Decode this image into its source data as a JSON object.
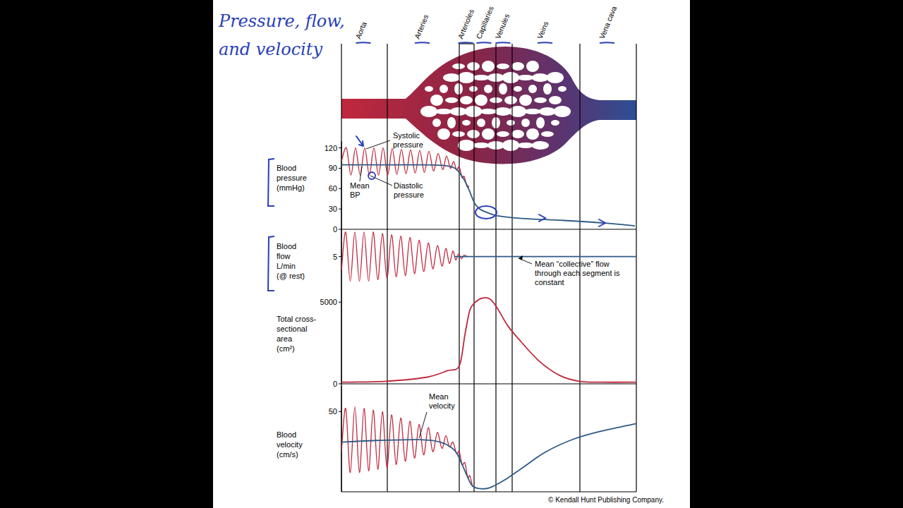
{
  "title": [
    "Pressure, flow,",
    "and velocity"
  ],
  "vessel_segments": {
    "labels": [
      "Aorta",
      "Arteries",
      "Arterioles",
      "Capillaries",
      "Venules",
      "Veins",
      "Vena cava"
    ],
    "bounds": [
      0,
      65,
      167,
      188,
      219,
      242,
      338,
      418
    ]
  },
  "credit": "© Kendall Hunt Publishing Company.",
  "chart_data": [
    {
      "type": "line",
      "y_label": [
        "Blood",
        "pressure",
        "(mmHg)"
      ],
      "xlim": [
        0,
        418
      ],
      "ylim": [
        0,
        130
      ],
      "yticks": [
        0,
        30,
        60,
        90,
        120
      ],
      "tick_labels": "y",
      "series": [
        {
          "color": "#c0283c",
          "x": [
            0,
            7,
            13.5,
            20,
            26.5,
            33,
            39.5,
            46,
            52.5,
            59,
            65.5,
            72,
            78.5,
            85,
            91.5,
            98,
            104.5,
            111,
            117.5,
            124,
            130.5,
            137,
            143.5,
            149,
            154.5,
            159,
            163,
            167,
            171,
            174,
            178,
            181
          ],
          "values": [
            100,
            120,
            80,
            120,
            80,
            120,
            80,
            120,
            80,
            120,
            80,
            119,
            81,
            118,
            82,
            117,
            83,
            116,
            84,
            115,
            86,
            112,
            88,
            108,
            90,
            100,
            88,
            92,
            76,
            78,
            63,
            64
          ]
        },
        {
          "color": "#2e5a86",
          "x": [
            0,
            116,
            146,
            161,
            171,
            178,
            184,
            189,
            196,
            206,
            221,
            256,
            316,
            376,
            416
          ],
          "values": [
            95,
            95,
            94,
            90,
            78,
            65,
            50,
            38,
            30,
            25,
            20,
            16,
            13,
            9,
            5
          ]
        }
      ],
      "annotations": [
        {
          "text": "Systolic pressure"
        },
        {
          "text": "Mean BP"
        },
        {
          "text": "Diastolic pressure"
        }
      ]
    },
    {
      "type": "line",
      "y_label": [
        "Blood",
        "flow",
        "L/min",
        "(@ rest)"
      ],
      "xlim": [
        0,
        418
      ],
      "ylim": [
        0,
        9
      ],
      "yticks": [
        5
      ],
      "tick_labels": "y",
      "series": [
        {
          "color": "#c0283c",
          "x": [
            0,
            6,
            12.5,
            19,
            25.5,
            32,
            38.5,
            45,
            51.5,
            58,
            64.5,
            71,
            77.5,
            84,
            90.5,
            97,
            103.5,
            110,
            116.5,
            123,
            129.5,
            136,
            142.5,
            148,
            153,
            158,
            162,
            166,
            170,
            174,
            178
          ],
          "values": [
            3,
            8.6,
            1.4,
            8.6,
            1.4,
            8.6,
            1.4,
            8.6,
            1.6,
            8.4,
            1.8,
            8.2,
            2,
            8,
            2.2,
            7.8,
            2.5,
            7.4,
            2.8,
            7,
            3.2,
            6.6,
            3.6,
            6.2,
            4,
            5.8,
            4.5,
            5.4,
            4.7,
            5.2,
            5
          ]
        },
        {
          "color": "#2e5a86",
          "x": [
            160,
            418
          ],
          "values": [
            5,
            5
          ]
        }
      ],
      "annotations": [
        {
          "text": "Mean “collective” flow through each segment is constant"
        }
      ]
    },
    {
      "type": "line",
      "y_label": [
        "Total cross-",
        "sectional",
        "area",
        "(cm²)"
      ],
      "xlim": [
        0,
        418
      ],
      "ylim": [
        0,
        5700
      ],
      "yticks": [
        0,
        5000
      ],
      "tick_labels": "y",
      "series": [
        {
          "color": "#c0283c",
          "x": [
            0,
            60,
            120,
            150,
            167,
            175,
            182,
            190,
            200,
            210,
            220,
            235,
            250,
            280,
            310,
            338,
            370,
            418
          ],
          "values": [
            100,
            150,
            400,
            800,
            1100,
            3000,
            4500,
            5000,
            5250,
            5200,
            4700,
            3600,
            2800,
            1400,
            500,
            150,
            100,
            100
          ]
        }
      ]
    },
    {
      "type": "line",
      "y_label": [
        "Blood",
        "velocity",
        "(cm/s)"
      ],
      "xlim": [
        0,
        418
      ],
      "ylim": [
        0,
        66
      ],
      "yticks": [
        50
      ],
      "tick_labels": "y",
      "series": [
        {
          "color": "#c0283c",
          "x": [
            0,
            6,
            12.5,
            19,
            25.5,
            32,
            38.5,
            45,
            51.5,
            58,
            64.5,
            71,
            77.5,
            84,
            90.5,
            97,
            103.5,
            110,
            116.5,
            123,
            129.5,
            136,
            142.5,
            148,
            153,
            158,
            163,
            167,
            171,
            175,
            179,
            182,
            186
          ],
          "values": [
            25,
            52,
            12,
            53,
            12,
            52,
            13,
            51,
            14,
            50,
            15,
            48,
            17,
            46,
            19,
            44,
            21,
            42,
            23,
            40,
            25,
            37,
            27,
            35,
            28,
            31,
            24,
            25,
            17,
            18,
            9,
            10,
            3
          ]
        },
        {
          "color": "#2e5a86",
          "x": [
            0,
            50,
            110,
            140,
            160,
            170,
            178,
            185,
            195,
            210,
            230,
            260,
            290,
            330,
            370,
            418
          ],
          "values": [
            31,
            32,
            32.5,
            31,
            26,
            18,
            10,
            4,
            2,
            2.5,
            7,
            16,
            25,
            33,
            38,
            42.5
          ]
        }
      ],
      "annotations": [
        {
          "text": "Mean velocity"
        }
      ]
    }
  ]
}
